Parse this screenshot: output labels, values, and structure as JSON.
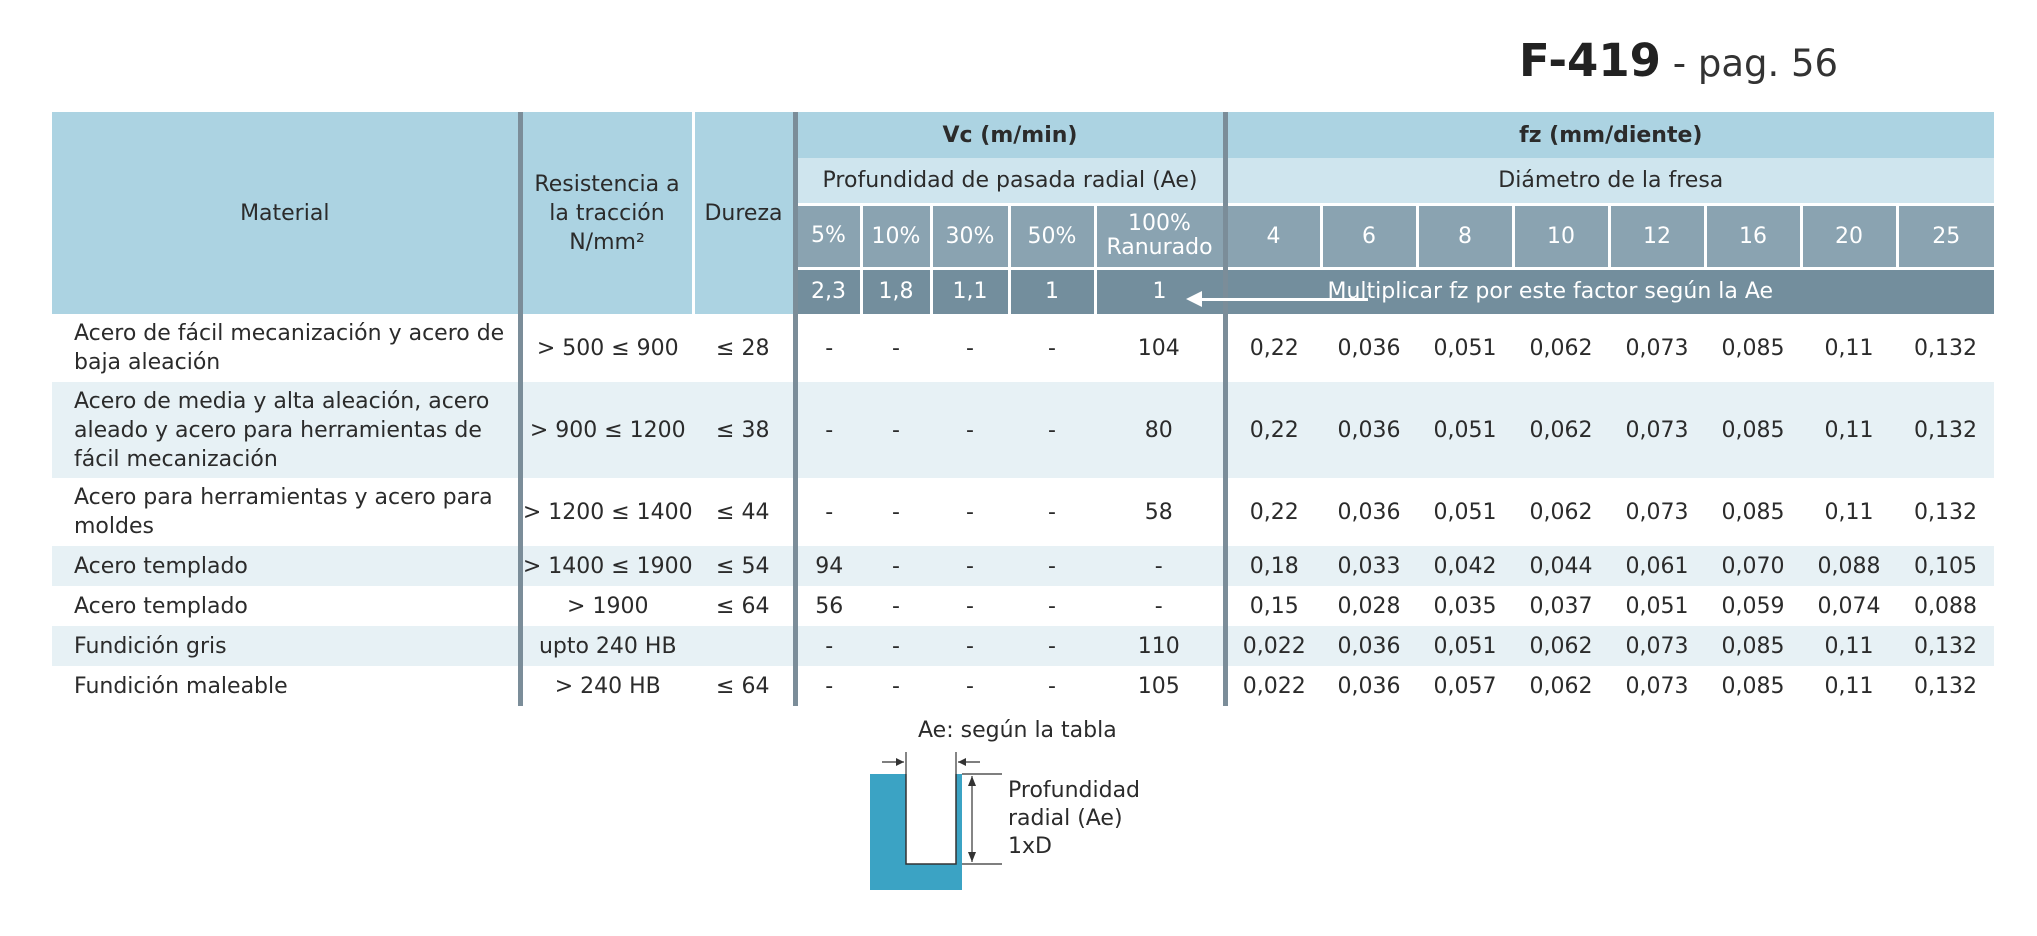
{
  "header": {
    "code": "F-419",
    "page_ref": " - pag. 56"
  },
  "table": {
    "col_material": "Material",
    "col_resistencia": "Resistencia a la tracción N/mm²",
    "col_dureza": "Dureza",
    "vc_title": "Vc (m/min)",
    "fz_title": "fz (mm/diente)",
    "vc_sub": "Profundidad de pasada radial (Ae)",
    "fz_sub": "Diámetro de la fresa",
    "ae_cols": [
      "5%",
      "10%",
      "30%",
      "50%",
      "100% Ranurado"
    ],
    "ae_factors": [
      "2,3",
      "1,8",
      "1,1",
      "1",
      "1"
    ],
    "diameters": [
      "4",
      "6",
      "8",
      "10",
      "12",
      "16",
      "20",
      "25"
    ],
    "factor_note": "Multiplicar fz por este factor según la Ae",
    "rows": [
      {
        "material": "Acero de fácil mecanización y acero de baja aleación",
        "resistencia": "> 500 ≤ 900",
        "dureza": "≤ 28",
        "vc": [
          "-",
          "-",
          "-",
          "-",
          "104"
        ],
        "fz": [
          "0,22",
          "0,036",
          "0,051",
          "0,062",
          "0,073",
          "0,085",
          "0,11",
          "0,132"
        ]
      },
      {
        "material": "Acero de media y alta aleación, acero aleado y acero para herramientas de fácil mecanización",
        "resistencia": "> 900 ≤ 1200",
        "dureza": "≤ 38",
        "vc": [
          "-",
          "-",
          "-",
          "-",
          "80"
        ],
        "fz": [
          "0,22",
          "0,036",
          "0,051",
          "0,062",
          "0,073",
          "0,085",
          "0,11",
          "0,132"
        ]
      },
      {
        "material": "Acero para herramientas y acero para moldes",
        "resistencia": "> 1200 ≤ 1400",
        "dureza": "≤ 44",
        "vc": [
          "-",
          "-",
          "-",
          "-",
          "58"
        ],
        "fz": [
          "0,22",
          "0,036",
          "0,051",
          "0,062",
          "0,073",
          "0,085",
          "0,11",
          "0,132"
        ]
      },
      {
        "material": "Acero templado",
        "resistencia": "> 1400 ≤ 1900",
        "dureza": "≤ 54",
        "vc": [
          "94",
          "-",
          "-",
          "-",
          "-"
        ],
        "fz": [
          "0,18",
          "0,033",
          "0,042",
          "0,044",
          "0,061",
          "0,070",
          "0,088",
          "0,105"
        ]
      },
      {
        "material": "Acero templado",
        "resistencia": "> 1900",
        "dureza": "≤ 64",
        "vc": [
          "56",
          "-",
          "-",
          "-",
          "-"
        ],
        "fz": [
          "0,15",
          "0,028",
          "0,035",
          "0,037",
          "0,051",
          "0,059",
          "0,074",
          "0,088"
        ]
      },
      {
        "material": "Fundición gris",
        "resistencia": "upto 240 HB",
        "dureza": "",
        "vc": [
          "-",
          "-",
          "-",
          "-",
          "110"
        ],
        "fz": [
          "0,022",
          "0,036",
          "0,051",
          "0,062",
          "0,073",
          "0,085",
          "0,11",
          "0,132"
        ]
      },
      {
        "material": "Fundición maleable",
        "resistencia": "> 240 HB",
        "dureza": "≤ 64",
        "vc": [
          "-",
          "-",
          "-",
          "-",
          "105"
        ],
        "fz": [
          "0,022",
          "0,036",
          "0,057",
          "0,062",
          "0,073",
          "0,085",
          "0,11",
          "0,132"
        ]
      }
    ]
  },
  "diagram": {
    "ae_label": "Ae: según la tabla",
    "depth_line1": "Profundidad",
    "depth_line2": "radial (Ae)",
    "depth_line3": "1xD",
    "colors": {
      "workpiece": "#3ba3c4"
    }
  },
  "colors": {
    "header_light": "#acd3e2",
    "header_pale": "#cfe5ee",
    "header_dark": "#8aa3b1",
    "row_alt": "#e7f1f5"
  }
}
